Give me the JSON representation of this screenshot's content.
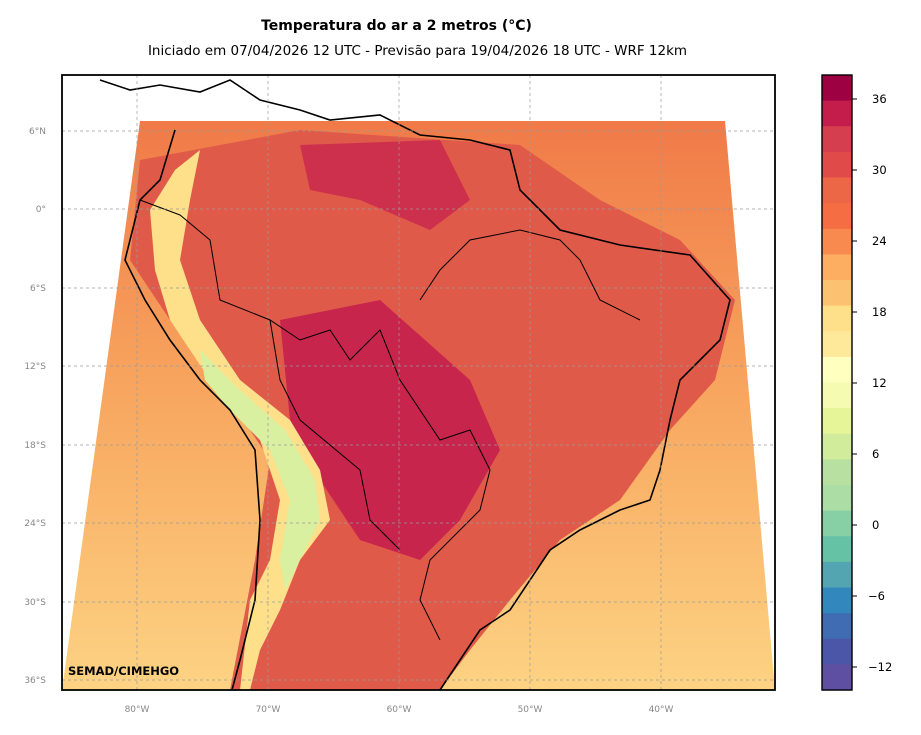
{
  "title": "Temperatura do ar a 2 metros (°C)",
  "subtitle": "Iniciado em 07/04/2026 12 UTC - Previsão para 19/04/2026 18 UTC - WRF 12km",
  "credit": "SEMAD/CIMEHGO",
  "lat_ticks": [
    "6°N",
    "0°",
    "6°S",
    "12°S",
    "18°S",
    "24°S",
    "30°S",
    "36°S"
  ],
  "lon_ticks": [
    "80°W",
    "70°W",
    "60°W",
    "50°W",
    "40°W"
  ],
  "colorbar": {
    "ticks": [
      "36",
      "30",
      "24",
      "18",
      "12",
      "6",
      "0",
      "−6",
      "−12"
    ],
    "colors": [
      "#9e0142",
      "#c51d4b",
      "#d53e4f",
      "#e04b4a",
      "#ec6746",
      "#f46d43",
      "#f88a50",
      "#fdae61",
      "#fdc271",
      "#fee08b",
      "#fee899",
      "#ffffbf",
      "#f6fbb2",
      "#e6f598",
      "#d1ed9c",
      "#b8e0a0",
      "#abdda4",
      "#87cfa4",
      "#66c2a5",
      "#53a6b1",
      "#3288bd",
      "#3f6cb2",
      "#4b56a8",
      "#5e4fa2"
    ]
  }
}
